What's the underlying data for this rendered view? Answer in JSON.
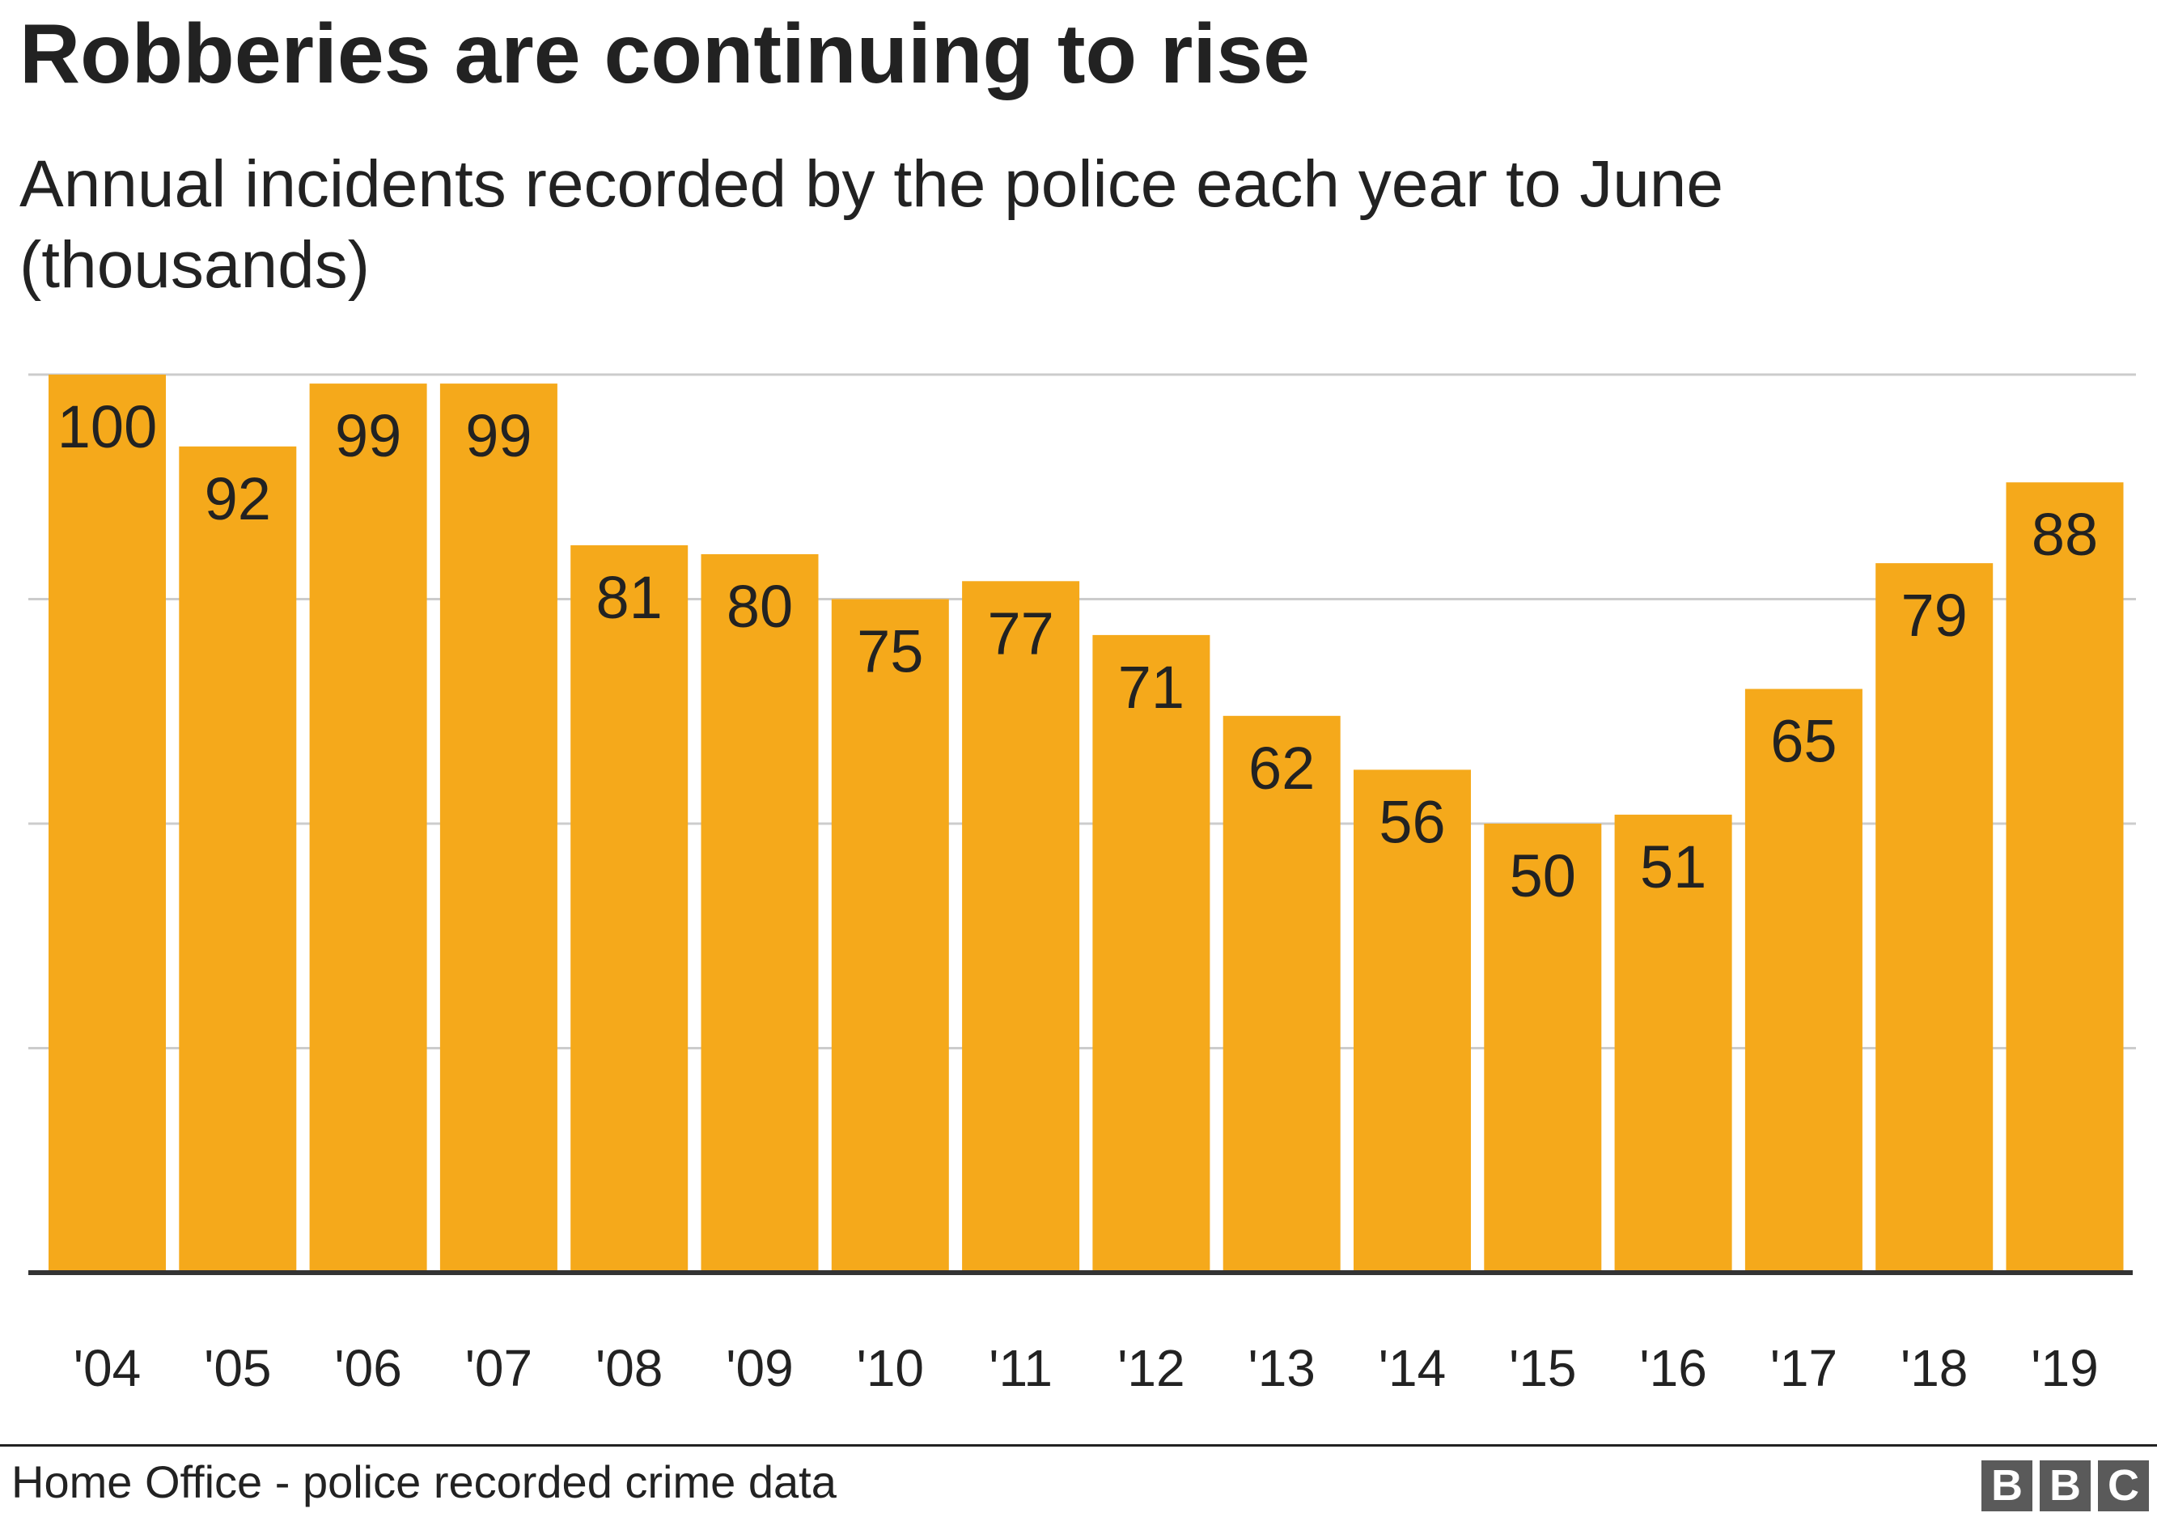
{
  "header": {
    "title": "Robberies are continuing to rise",
    "subtitle": "Annual incidents recorded by the police each year to June (thousands)"
  },
  "footer": {
    "source": "Home Office - police recorded crime data",
    "logo_letters": [
      "B",
      "B",
      "C"
    ]
  },
  "colors": {
    "bar": "#f5a91b",
    "grid": "#cccccc",
    "baseline": "#333333",
    "text": "#222222",
    "logo_block": "#5a5a5a"
  },
  "chart_data": {
    "type": "bar",
    "title": "Robberies are continuing to rise",
    "subtitle": "Annual incidents recorded by the police each year to June (thousands)",
    "categories": [
      "'04",
      "'05",
      "'06",
      "'07",
      "'08",
      "'09",
      "'10",
      "'11",
      "'12",
      "'13",
      "'14",
      "'15",
      "'16",
      "'17",
      "'18",
      "'19"
    ],
    "values": [
      100,
      92,
      99,
      99,
      81,
      80,
      75,
      77,
      71,
      62,
      56,
      50,
      51,
      65,
      79,
      88
    ],
    "data_labels": [
      "100",
      "92",
      "99",
      "99",
      "81",
      "80",
      "75",
      "77",
      "71",
      "62",
      "56",
      "50",
      "51",
      "65",
      "79",
      "88"
    ],
    "ylim": [
      0,
      100
    ],
    "ygrid": [
      25,
      50,
      75,
      100
    ],
    "grid": true,
    "y_tick_labels_shown": false,
    "legend": "none"
  }
}
